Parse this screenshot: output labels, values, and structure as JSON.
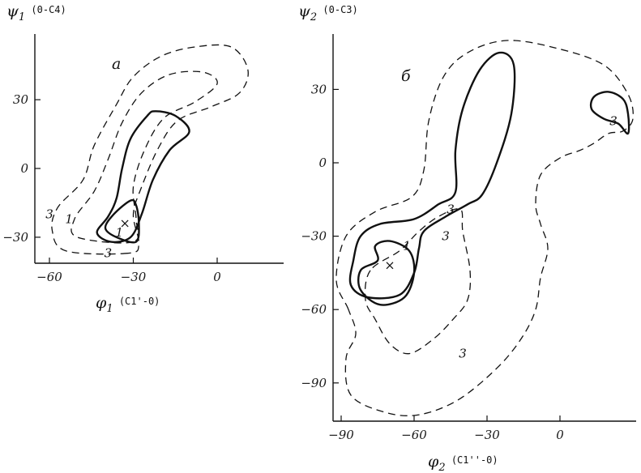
{
  "chart_data": [
    {
      "type": "contour",
      "panel": "a",
      "ylabel": {
        "symbol": "ψ",
        "sub": "1",
        "bond": "(0-C4)"
      },
      "xlabel": {
        "symbol": "φ",
        "sub": "1",
        "bond": "(C1'-0)"
      },
      "xlim": [
        -75,
        30
      ],
      "ylim": [
        -42,
        55
      ],
      "x_ticks": [
        -60,
        -30,
        0
      ],
      "y_ticks": [
        30,
        0,
        -30
      ],
      "minimum": {
        "x": -33,
        "y": -24
      },
      "contours": [
        {
          "level": "1",
          "style": "solid",
          "points": [
            [
              -25,
              23
            ],
            [
              -31,
              13
            ],
            [
              -34,
              0
            ],
            [
              -36,
              -13
            ],
            [
              -39,
              -21
            ],
            [
              -43,
              -28
            ],
            [
              -38,
              -32
            ],
            [
              -31,
              -30
            ],
            [
              -27,
              -20
            ],
            [
              -23,
              -5
            ],
            [
              -17,
              8
            ],
            [
              -10,
              16
            ],
            [
              -15,
              23
            ],
            [
              -22,
              25
            ]
          ]
        },
        {
          "level": "1",
          "style": "solid",
          "points": [
            [
              -31,
              -14
            ],
            [
              -37,
              -20
            ],
            [
              -40,
              -26
            ],
            [
              -36,
              -30
            ],
            [
              -29,
              -32
            ],
            [
              -28,
              -24
            ],
            [
              -29,
              -16
            ]
          ]
        },
        {
          "level": "3",
          "style": "dashed",
          "points": [
            [
              -32,
              -37
            ],
            [
              -54,
              -36
            ],
            [
              -59,
              -27
            ],
            [
              -57,
              -17
            ],
            [
              -48,
              -5
            ],
            [
              -44,
              10
            ],
            [
              -36,
              28
            ],
            [
              -30,
              40
            ],
            [
              -20,
              49
            ],
            [
              -8,
              53
            ],
            [
              5,
              53
            ],
            [
              11,
              43
            ],
            [
              8,
              33
            ],
            [
              -2,
              27
            ],
            [
              -14,
              21
            ],
            [
              -21,
              9
            ],
            [
              -27,
              -8
            ],
            [
              -30,
              -20
            ],
            [
              -28,
              -33
            ]
          ]
        },
        {
          "level": "1",
          "style": "dashed",
          "points": [
            [
              -30,
              -32
            ],
            [
              -50,
              -30
            ],
            [
              -51,
              -22
            ],
            [
              -44,
              -10
            ],
            [
              -39,
              4
            ],
            [
              -34,
              20
            ],
            [
              -27,
              33
            ],
            [
              -17,
              41
            ],
            [
              -5,
              42
            ],
            [
              0,
              37
            ],
            [
              -8,
              29
            ],
            [
              -19,
              22
            ],
            [
              -26,
              8
            ],
            [
              -30,
              -8
            ],
            [
              -29,
              -22
            ]
          ]
        }
      ],
      "contour_labels": [
        {
          "text": "3",
          "x": -60,
          "y": -20
        },
        {
          "text": "1",
          "x": -53,
          "y": -22
        },
        {
          "text": "1",
          "x": -35,
          "y": -28
        },
        {
          "text": "3",
          "x": -39,
          "y": -37
        }
      ]
    },
    {
      "type": "contour",
      "panel": "б",
      "ylabel": {
        "symbol": "ψ",
        "sub": "2",
        "bond": "(0-C3)"
      },
      "xlabel": {
        "symbol": "φ",
        "sub": "2",
        "bond": "(C1''-0)"
      },
      "xlim": [
        -98,
        30
      ],
      "ylim": [
        -114,
        52
      ],
      "x_ticks": [
        -90,
        -60,
        -30,
        0
      ],
      "y_ticks": [
        30,
        0,
        -30,
        -60,
        -90
      ],
      "minimum": {
        "x": -70,
        "y": -42
      },
      "contours": [
        {
          "level": "1",
          "style": "solid",
          "points": [
            [
              -75,
              -40
            ],
            [
              -82,
              -44
            ],
            [
              -82,
              -52
            ],
            [
              -74,
              -58
            ],
            [
              -64,
              -55
            ],
            [
              -60,
              -45
            ],
            [
              -62,
              -36
            ],
            [
              -70,
              -32
            ],
            [
              -76,
              -34
            ]
          ]
        },
        {
          "level": "3",
          "style": "solid",
          "points": [
            [
              -85,
              -40
            ],
            [
              -82,
              -30
            ],
            [
              -74,
              -25
            ],
            [
              -60,
              -23
            ],
            [
              -50,
              -17
            ],
            [
              -43,
              -12
            ],
            [
              -43,
              5
            ],
            [
              -40,
              22
            ],
            [
              -33,
              38
            ],
            [
              -25,
              45
            ],
            [
              -19,
              40
            ],
            [
              -20,
              20
            ],
            [
              -26,
              0
            ],
            [
              -32,
              -13
            ],
            [
              -38,
              -17
            ],
            [
              -47,
              -22
            ],
            [
              -56,
              -28
            ],
            [
              -58,
              -35
            ],
            [
              -60,
              -45
            ],
            [
              -66,
              -54
            ],
            [
              -79,
              -55
            ],
            [
              -86,
              -50
            ]
          ]
        },
        {
          "level": "3",
          "style": "solid",
          "points": [
            [
              20,
              29
            ],
            [
              14,
              27
            ],
            [
              13,
              22
            ],
            [
              18,
              18
            ],
            [
              24,
              16
            ],
            [
              28,
              12
            ],
            [
              28,
              20
            ],
            [
              26,
              26
            ]
          ]
        },
        {
          "level": "3",
          "style": "dashed",
          "points": [
            [
              -87,
              -60
            ],
            [
              -92,
              -48
            ],
            [
              -88,
              -30
            ],
            [
              -76,
              -20
            ],
            [
              -61,
              -14
            ],
            [
              -56,
              -3
            ],
            [
              -54,
              17
            ],
            [
              -48,
              35
            ],
            [
              -38,
              45
            ],
            [
              -22,
              50
            ],
            [
              -2,
              47
            ],
            [
              18,
              40
            ],
            [
              28,
              28
            ],
            [
              30,
              18
            ],
            [
              26,
              13
            ],
            [
              20,
              12
            ],
            [
              14,
              8
            ],
            [
              8,
              5
            ],
            [
              0,
              2
            ],
            [
              -8,
              -5
            ],
            [
              -10,
              -17
            ],
            [
              -8,
              -25
            ],
            [
              -5,
              -35
            ],
            [
              -8,
              -47
            ],
            [
              -10,
              -60
            ],
            [
              -16,
              -72
            ],
            [
              -26,
              -84
            ],
            [
              -42,
              -97
            ],
            [
              -58,
              -103
            ],
            [
              -72,
              -102
            ],
            [
              -86,
              -95
            ],
            [
              -88,
              -80
            ],
            [
              -84,
              -70
            ]
          ]
        },
        {
          "level": "3",
          "style": "dashed",
          "points": [
            [
              -78,
              -44
            ],
            [
              -80,
              -56
            ],
            [
              -76,
              -64
            ],
            [
              -70,
              -74
            ],
            [
              -62,
              -78
            ],
            [
              -52,
              -72
            ],
            [
              -44,
              -64
            ],
            [
              -38,
              -56
            ],
            [
              -37,
              -44
            ],
            [
              -40,
              -28
            ],
            [
              -41,
              -19
            ],
            [
              -50,
              -22
            ],
            [
              -58,
              -28
            ],
            [
              -66,
              -36
            ]
          ]
        }
      ],
      "contour_labels": [
        {
          "text": "3",
          "x": 22,
          "y": 17
        },
        {
          "text": "1",
          "x": -63,
          "y": -34
        },
        {
          "text": "3",
          "x": -47,
          "y": -30
        },
        {
          "text": "3",
          "x": -45,
          "y": -19
        },
        {
          "text": "3",
          "x": -40,
          "y": -78
        }
      ]
    }
  ]
}
